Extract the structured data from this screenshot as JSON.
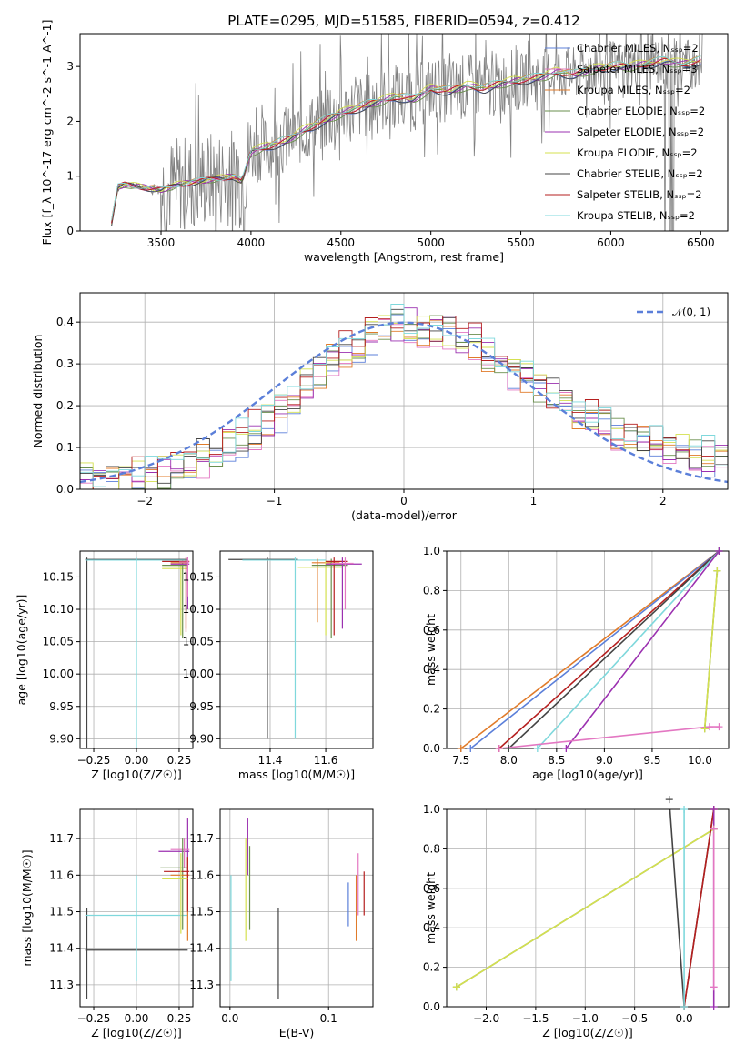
{
  "chart_data": [
    {
      "type": "line",
      "title": "PLATE=0295, MJD=51585, FIBERID=0594, z=0.412",
      "xlabel": "wavelength [Angstrom, rest frame]",
      "ylabel": "Flux [f_λ 10^-17 erg cm^-2 s^-1 A^-1]",
      "xlim": [
        3050,
        6650
      ],
      "ylim": [
        0,
        3.6
      ],
      "xticks": [
        "3500",
        "4000",
        "4500",
        "5000",
        "5500",
        "6000",
        "6500"
      ],
      "yticks": [
        "0",
        "1",
        "2",
        "3"
      ],
      "legend_position": "right",
      "series": [
        {
          "name": "Chabrier MILES, N_SSP=2",
          "color": "#5b7fd9"
        },
        {
          "name": "Salpeter MILES, N_SSP=3",
          "color": "#e377c2"
        },
        {
          "name": "Kroupa MILES, N_SSP=2",
          "color": "#e07b2a"
        },
        {
          "name": "Chabrier ELODIE, N_SSP=2",
          "color": "#6a8f4e"
        },
        {
          "name": "Salpeter ELODIE, N_SSP=2",
          "color": "#9b30b0"
        },
        {
          "name": "Kroupa ELODIE, N_SSP=2",
          "color": "#d4e04f"
        },
        {
          "name": "Chabrier STELIB, N_SSP=2",
          "color": "#444444"
        },
        {
          "name": "Salpeter STELIB, N_SSP=2",
          "color": "#b51f1f"
        },
        {
          "name": "Kroupa STELIB, N_SSP=2",
          "color": "#7fd8dc"
        }
      ],
      "model_anchors": {
        "x": [
          3220,
          3260,
          3300,
          3400,
          3500,
          3600,
          3700,
          3800,
          3900,
          3950,
          4000,
          4100,
          4200,
          4300,
          4400,
          4500,
          4600,
          4700,
          4800,
          4900,
          5000,
          5100,
          5200,
          5300,
          5400,
          5500,
          5600,
          5700,
          5800,
          5900,
          6000,
          6100,
          6200,
          6300,
          6400,
          6500
        ],
        "y": [
          0.05,
          0.8,
          0.85,
          0.8,
          0.75,
          0.85,
          0.9,
          0.95,
          1.0,
          0.9,
          1.45,
          1.55,
          1.65,
          1.85,
          2.0,
          2.15,
          2.25,
          2.35,
          2.45,
          2.4,
          2.6,
          2.55,
          2.65,
          2.6,
          2.7,
          2.75,
          2.8,
          2.9,
          2.85,
          2.95,
          3.0,
          3.0,
          3.05,
          3.1,
          3.05,
          3.1
        ]
      }
    },
    {
      "type": "line",
      "xlabel": "(data-model)/error",
      "ylabel": "Normed distribution",
      "xlim": [
        -2.5,
        2.5
      ],
      "ylim": [
        0,
        0.47
      ],
      "xticks": [
        "−2",
        "−1",
        "0",
        "1",
        "2"
      ],
      "yticks": [
        "0.0",
        "0.1",
        "0.2",
        "0.3",
        "0.4"
      ],
      "legend_position": "top-right",
      "reference": {
        "name": "𝒩(0, 1)",
        "color": "#5b7fd9"
      },
      "step_hist_anchors": {
        "x": [
          -2.5,
          -2.0,
          -1.5,
          -1.0,
          -0.5,
          0.0,
          0.5,
          1.0,
          1.5,
          2.0,
          2.5
        ],
        "y": [
          0.02,
          0.03,
          0.08,
          0.17,
          0.33,
          0.4,
          0.36,
          0.25,
          0.16,
          0.1,
          0.07
        ]
      }
    },
    {
      "type": "scatter",
      "xlabel": "Z [log10(Z/Z☉)]",
      "ylabel": "age  [log10(age/yr)]",
      "xlim": [
        -0.33,
        0.33
      ],
      "ylim": [
        9.885,
        10.19
      ],
      "xticks": [
        "−0.25",
        "0.00",
        "0.25"
      ],
      "yticks": [
        "9.90",
        "9.95",
        "10.00",
        "10.05",
        "10.10",
        "10.15"
      ]
    },
    {
      "type": "scatter",
      "xlabel": "mass [log10(M/M☉)]",
      "ylabel": "",
      "xlim": [
        11.22,
        11.77
      ],
      "ylim": [
        9.885,
        10.19
      ],
      "xticks": [
        "11.4",
        "11.6"
      ],
      "yticks": [
        "9.90",
        "9.95",
        "10.00",
        "10.05",
        "10.10",
        "10.15"
      ]
    },
    {
      "type": "line",
      "xlabel": "age  [log10(age/yr)]",
      "ylabel": "mass weight",
      "xlim": [
        7.35,
        10.3
      ],
      "ylim": [
        0,
        1
      ],
      "xticks": [
        "7.5",
        "8.0",
        "8.5",
        "9.0",
        "9.5",
        "10.0"
      ],
      "yticks": [
        "0.0",
        "0.2",
        "0.4",
        "0.6",
        "0.8",
        "1.0"
      ],
      "series": [
        {
          "x": [
            7.5,
            10.2
          ],
          "y": [
            0.0,
            1.0
          ],
          "color": "#e07b2a"
        },
        {
          "x": [
            7.6,
            10.2
          ],
          "y": [
            0.0,
            1.0
          ],
          "color": "#5b7fd9"
        },
        {
          "x": [
            7.9,
            10.2
          ],
          "y": [
            0.0,
            1.0
          ],
          "color": "#b51f1f"
        },
        {
          "x": [
            8.0,
            10.2
          ],
          "y": [
            0.0,
            1.0
          ],
          "color": "#444444"
        },
        {
          "x": [
            8.3,
            10.2
          ],
          "y": [
            0.0,
            1.0
          ],
          "color": "#7fd8dc"
        },
        {
          "x": [
            8.6,
            10.2
          ],
          "y": [
            0.0,
            1.0
          ],
          "color": "#9b30b0"
        },
        {
          "x": [
            7.9,
            10.1,
            10.2
          ],
          "y": [
            0.0,
            0.11,
            0.11
          ],
          "color": "#e377c2"
        },
        {
          "x": [
            10.05,
            10.18
          ],
          "y": [
            0.1,
            0.9
          ],
          "color": "#6a8f4e"
        },
        {
          "x": [
            10.05,
            10.18
          ],
          "y": [
            0.1,
            0.9
          ],
          "color": "#d4e04f"
        }
      ]
    },
    {
      "type": "scatter",
      "xlabel": "Z [log10(Z/Z☉)]",
      "ylabel": "mass [log10(M/M☉)]",
      "xlim": [
        -0.33,
        0.33
      ],
      "ylim": [
        11.24,
        11.78
      ],
      "xticks": [
        "−0.25",
        "0.00",
        "0.25"
      ],
      "yticks": [
        "11.3",
        "11.4",
        "11.5",
        "11.6",
        "11.7"
      ]
    },
    {
      "type": "scatter",
      "xlabel": "E(B-V)",
      "ylabel": "",
      "xlim": [
        -0.01,
        0.145
      ],
      "ylim": [
        11.24,
        11.78
      ],
      "xticks": [
        "0.0",
        "0.1"
      ],
      "yticks": [
        "11.3",
        "11.4",
        "11.5",
        "11.6",
        "11.7"
      ]
    },
    {
      "type": "line",
      "xlabel": "Z [log10(Z/Z☉)]",
      "ylabel": "mass weight",
      "xlim": [
        -2.4,
        0.45
      ],
      "ylim": [
        0,
        1
      ],
      "xticks": [
        "−2.0",
        "−1.5",
        "−1.0",
        "−0.5",
        "0.0"
      ],
      "yticks": [
        "0.0",
        "0.2",
        "0.4",
        "0.6",
        "0.8",
        "1.0"
      ],
      "series": [
        {
          "x": [
            -2.3,
            0.3
          ],
          "y": [
            0.1,
            0.9
          ],
          "color": "#6a8f4e"
        },
        {
          "x": [
            -2.3,
            0.3
          ],
          "y": [
            0.1,
            0.9
          ],
          "color": "#d4e04f"
        },
        {
          "x": [
            -0.15,
            0.0,
            0.3
          ],
          "y": [
            1.05,
            0.0,
            1.0
          ],
          "color": "#444444"
        },
        {
          "x": [
            0.0,
            0.3
          ],
          "y": [
            0.0,
            1.0
          ],
          "color": "#b51f1f"
        },
        {
          "x": [
            0.0,
            0.0
          ],
          "y": [
            0.0,
            1.0
          ],
          "color": "#7fd8dc"
        },
        {
          "x": [
            0.3,
            0.3
          ],
          "y": [
            0.0,
            1.0
          ],
          "color": "#9b30b0"
        },
        {
          "x": [
            0.3,
            0.3
          ],
          "y": [
            0.1,
            0.9
          ],
          "color": "#e377c2"
        }
      ]
    }
  ]
}
